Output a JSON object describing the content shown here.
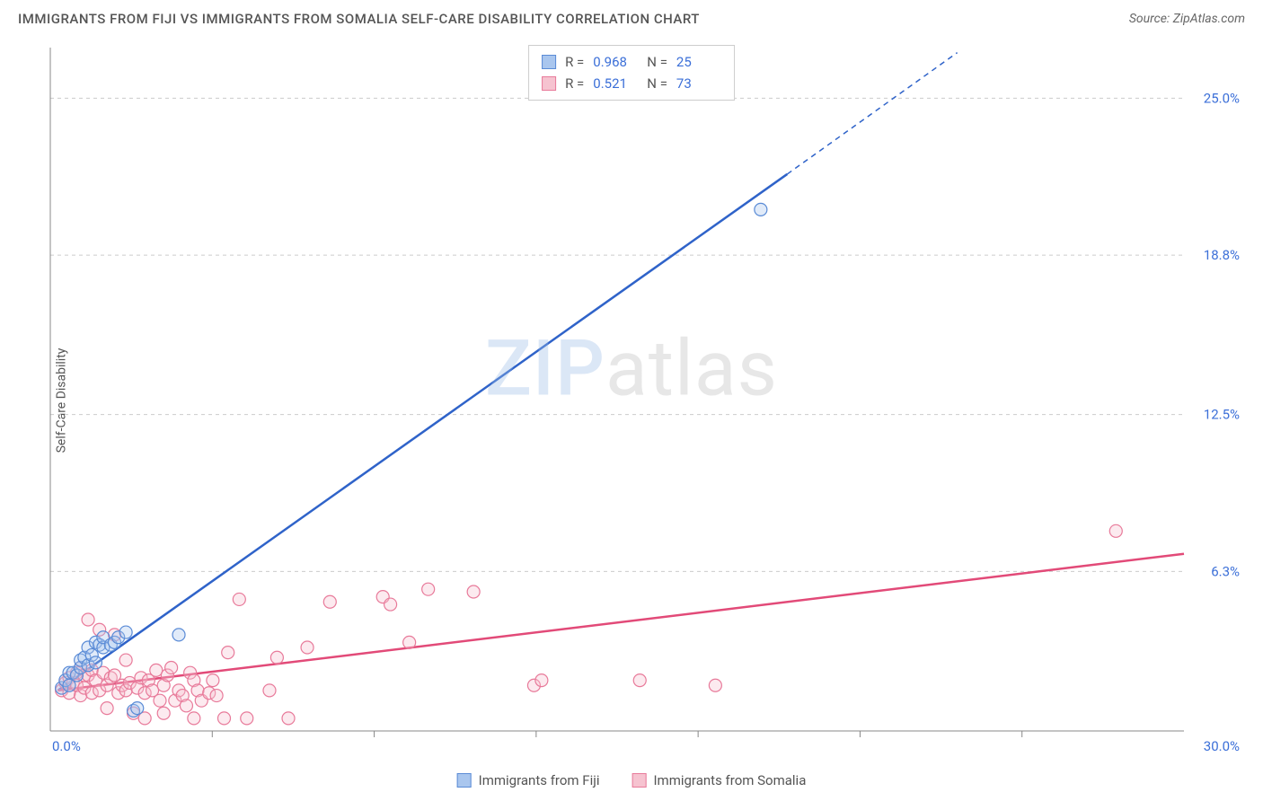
{
  "header": {
    "title": "IMMIGRANTS FROM FIJI VS IMMIGRANTS FROM SOMALIA SELF-CARE DISABILITY CORRELATION CHART",
    "source": "Source: ZipAtlas.com"
  },
  "watermark": {
    "part1": "ZIP",
    "part2": "atlas"
  },
  "chart": {
    "type": "scatter",
    "y_axis_label": "Self-Care Disability",
    "xlim": [
      0,
      30.0
    ],
    "ylim": [
      0,
      27.0
    ],
    "x_ticks": [
      0.0,
      30.0
    ],
    "x_tick_labels": [
      "0.0%",
      "30.0%"
    ],
    "x_minor_ticks_count": 7,
    "y_ticks": [
      6.3,
      12.5,
      18.8,
      25.0
    ],
    "y_tick_labels": [
      "6.3%",
      "12.5%",
      "18.8%",
      "25.0%"
    ],
    "background_color": "#ffffff",
    "grid_color": "#cccccc",
    "axis_color": "#888888",
    "tick_label_color": "#3b6fd8",
    "marker_radius": 7,
    "marker_stroke_width": 1.2,
    "marker_fill_opacity": 0.35,
    "trend_line_width": 2.5,
    "trend_dash_line_width": 1.5,
    "series": [
      {
        "name": "Immigrants from Fiji",
        "color_fill": "#a9c6ee",
        "color_stroke": "#5a8bd6",
        "line_color": "#2f63c9",
        "r": "0.968",
        "n": "25",
        "trend": {
          "x1": 0.2,
          "y1": 1.6,
          "x2": 19.5,
          "y2": 22.0,
          "dash_to_x": 24.0,
          "dash_to_y": 26.8
        },
        "points": [
          [
            0.3,
            1.7
          ],
          [
            0.4,
            2.0
          ],
          [
            0.5,
            1.8
          ],
          [
            0.5,
            2.3
          ],
          [
            0.6,
            2.3
          ],
          [
            0.7,
            2.2
          ],
          [
            0.8,
            2.5
          ],
          [
            0.8,
            2.8
          ],
          [
            0.9,
            2.9
          ],
          [
            1.0,
            2.6
          ],
          [
            1.0,
            3.3
          ],
          [
            1.1,
            3.0
          ],
          [
            1.2,
            2.7
          ],
          [
            1.2,
            3.5
          ],
          [
            1.3,
            3.4
          ],
          [
            1.4,
            3.3
          ],
          [
            1.4,
            3.7
          ],
          [
            1.6,
            3.4
          ],
          [
            1.7,
            3.5
          ],
          [
            1.8,
            3.7
          ],
          [
            2.0,
            3.9
          ],
          [
            2.2,
            0.8
          ],
          [
            2.3,
            0.9
          ],
          [
            3.4,
            3.8
          ],
          [
            18.8,
            20.6
          ]
        ]
      },
      {
        "name": "Immigrants from Somalia",
        "color_fill": "#f6c3d0",
        "color_stroke": "#e87a9a",
        "line_color": "#e24a78",
        "r": "0.521",
        "n": "73",
        "trend": {
          "x1": 0.2,
          "y1": 1.6,
          "x2": 30.0,
          "y2": 7.0,
          "dash_to_x": 30.0,
          "dash_to_y": 7.0
        },
        "points": [
          [
            0.3,
            1.6
          ],
          [
            0.4,
            1.9
          ],
          [
            0.5,
            2.1
          ],
          [
            0.5,
            1.5
          ],
          [
            0.6,
            1.9
          ],
          [
            0.7,
            1.8
          ],
          [
            0.7,
            2.3
          ],
          [
            0.8,
            2.5
          ],
          [
            0.8,
            1.4
          ],
          [
            0.9,
            2.2
          ],
          [
            0.9,
            1.7
          ],
          [
            1.0,
            2.2
          ],
          [
            1.0,
            4.4
          ],
          [
            1.1,
            1.5
          ],
          [
            1.1,
            2.4
          ],
          [
            1.2,
            2.0
          ],
          [
            1.3,
            4.0
          ],
          [
            1.3,
            1.6
          ],
          [
            1.4,
            2.3
          ],
          [
            1.5,
            0.9
          ],
          [
            1.5,
            1.8
          ],
          [
            1.6,
            2.1
          ],
          [
            1.7,
            2.2
          ],
          [
            1.7,
            3.8
          ],
          [
            1.8,
            1.5
          ],
          [
            1.9,
            1.8
          ],
          [
            2.0,
            2.8
          ],
          [
            2.0,
            1.6
          ],
          [
            2.1,
            1.9
          ],
          [
            2.2,
            0.7
          ],
          [
            2.3,
            1.7
          ],
          [
            2.4,
            2.1
          ],
          [
            2.5,
            1.5
          ],
          [
            2.5,
            0.5
          ],
          [
            2.6,
            2.0
          ],
          [
            2.7,
            1.6
          ],
          [
            2.8,
            2.4
          ],
          [
            2.9,
            1.2
          ],
          [
            3.0,
            0.7
          ],
          [
            3.0,
            1.8
          ],
          [
            3.1,
            2.2
          ],
          [
            3.2,
            2.5
          ],
          [
            3.3,
            1.2
          ],
          [
            3.4,
            1.6
          ],
          [
            3.5,
            1.4
          ],
          [
            3.6,
            1.0
          ],
          [
            3.7,
            2.3
          ],
          [
            3.8,
            2.0
          ],
          [
            3.8,
            0.5
          ],
          [
            3.9,
            1.6
          ],
          [
            4.0,
            1.2
          ],
          [
            4.2,
            1.5
          ],
          [
            4.3,
            2.0
          ],
          [
            4.4,
            1.4
          ],
          [
            4.6,
            0.5
          ],
          [
            4.7,
            3.1
          ],
          [
            5.0,
            5.2
          ],
          [
            5.2,
            0.5
          ],
          [
            5.8,
            1.6
          ],
          [
            6.0,
            2.9
          ],
          [
            6.3,
            0.5
          ],
          [
            6.8,
            3.3
          ],
          [
            7.4,
            5.1
          ],
          [
            8.8,
            5.3
          ],
          [
            9.0,
            5.0
          ],
          [
            9.5,
            3.5
          ],
          [
            10.0,
            5.6
          ],
          [
            11.2,
            5.5
          ],
          [
            12.8,
            1.8
          ],
          [
            13.0,
            2.0
          ],
          [
            15.6,
            2.0
          ],
          [
            17.6,
            1.8
          ],
          [
            28.2,
            7.9
          ]
        ]
      }
    ]
  },
  "legend": {
    "items": [
      {
        "label": "Immigrants from Fiji",
        "fill": "#a9c6ee",
        "stroke": "#5a8bd6"
      },
      {
        "label": "Immigrants from Somalia",
        "fill": "#f6c3d0",
        "stroke": "#e87a9a"
      }
    ]
  }
}
